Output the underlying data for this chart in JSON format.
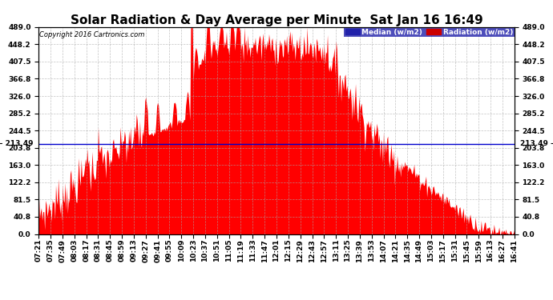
{
  "title": "Solar Radiation & Day Average per Minute  Sat Jan 16 16:49",
  "copyright": "Copyright 2016 Cartronics.com",
  "median_value": 213.49,
  "ymin": 0.0,
  "ymax": 489.0,
  "yticks": [
    0.0,
    40.8,
    81.5,
    122.2,
    163.0,
    203.8,
    244.5,
    285.2,
    326.0,
    366.8,
    407.5,
    448.2,
    489.0
  ],
  "background_color": "#ffffff",
  "grid_color": "#aaaaaa",
  "fill_color": "#ff0000",
  "median_line_color": "#0000cc",
  "legend_median_bg": "#2222aa",
  "legend_radiation_bg": "#cc0000",
  "title_fontsize": 11,
  "tick_fontsize": 6.5,
  "x_start_min": 441,
  "x_end_min": 1001,
  "x_tick_interval_min": 14,
  "x_tick_labels": [
    "07:21",
    "07:35",
    "07:49",
    "08:03",
    "08:17",
    "08:31",
    "08:45",
    "08:59",
    "09:13",
    "09:27",
    "09:41",
    "09:55",
    "10:09",
    "10:23",
    "10:37",
    "10:51",
    "11:05",
    "11:19",
    "11:33",
    "11:47",
    "12:01",
    "12:15",
    "12:29",
    "12:43",
    "12:57",
    "13:11",
    "13:25",
    "13:39",
    "13:53",
    "14:07",
    "14:21",
    "14:35",
    "14:49",
    "15:03",
    "15:17",
    "15:31",
    "15:45",
    "15:59",
    "16:13",
    "16:27",
    "16:41"
  ]
}
